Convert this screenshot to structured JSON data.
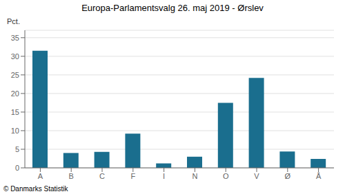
{
  "chart_data": {
    "type": "bar",
    "title": "Europa-Parlamentsvalg 26. maj 2019 - Ørslev",
    "categories": [
      "A",
      "B",
      "C",
      "F",
      "I",
      "N",
      "O",
      "V",
      "Ø",
      "Å"
    ],
    "values": [
      31.5,
      4.0,
      4.3,
      9.2,
      1.2,
      3.0,
      17.5,
      24.2,
      4.4,
      2.4
    ],
    "color": "#1a6e8e",
    "ylabel": "Pct.",
    "ylim": [
      0,
      37
    ],
    "yticks": [
      0,
      5,
      10,
      15,
      20,
      25,
      30,
      35
    ],
    "grid": true,
    "footer": "© Danmarks Statistik"
  }
}
